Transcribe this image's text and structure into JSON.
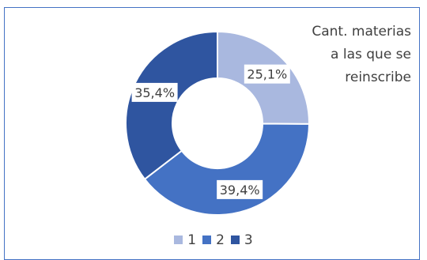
{
  "chart_data": {
    "type": "pie",
    "title_lines": [
      "Cant. materias",
      "a las que se",
      "reinscribe"
    ],
    "categories": [
      "1",
      "2",
      "3"
    ],
    "values": [
      25.1,
      39.4,
      35.4
    ],
    "labels": [
      "25,1%",
      "39,4%",
      "35,4%"
    ],
    "colors": [
      "#a9b8df",
      "#4472c4",
      "#2f55a0"
    ],
    "donut": true,
    "legend_position": "bottom"
  }
}
